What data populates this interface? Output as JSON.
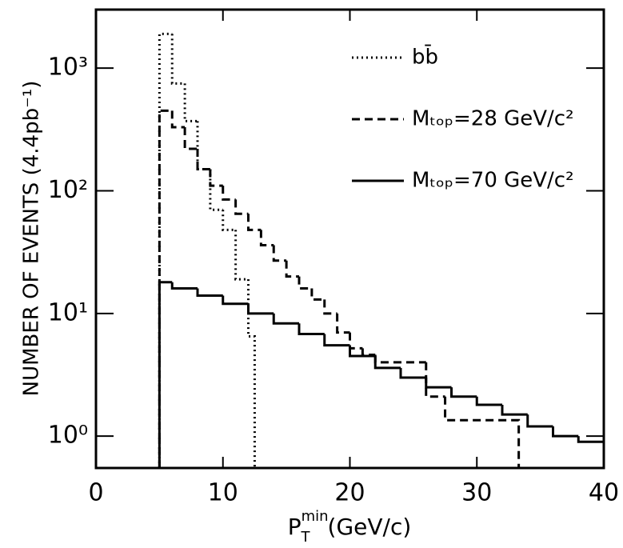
{
  "chart_data": {
    "type": "step-histogram",
    "ylabel": "NUMBER OF EVENTS (4.4pb⁻¹)",
    "xlabel": {
      "symbol": "P",
      "sub": "T",
      "sup": "min",
      "unit": "(GeV/c)"
    },
    "xlim": [
      0,
      40
    ],
    "xticks": [
      0,
      10,
      20,
      30,
      40
    ],
    "ylim": [
      0.55,
      3000
    ],
    "log_y": true,
    "yticks": [
      {
        "value": 1,
        "label": "10⁰"
      },
      {
        "value": 10,
        "label": "10¹"
      },
      {
        "value": 100,
        "label": "10²"
      },
      {
        "value": 1000,
        "label": "10³"
      }
    ],
    "legend": "upper right",
    "series": [
      {
        "name": "bb̄",
        "style": "dotted",
        "color": "#000000",
        "bins": [
          5,
          6,
          7,
          8,
          9,
          10,
          11,
          12,
          12.5
        ],
        "values": [
          1900,
          750,
          370,
          150,
          70,
          48,
          19,
          6.5
        ]
      },
      {
        "name": "Mₜₒₚ=28 GeV/c²",
        "style": "dashed",
        "color": "#000000",
        "bins": [
          5,
          6,
          7,
          8,
          9,
          10,
          11,
          12,
          13,
          14,
          15,
          16,
          17,
          18,
          19,
          20,
          21,
          22,
          26,
          27.5,
          33.3
        ],
        "values": [
          450,
          330,
          220,
          150,
          110,
          85,
          65,
          48,
          36,
          27,
          20,
          16,
          13,
          10,
          7,
          5.2,
          4.6,
          4.0,
          2.1,
          1.35
        ]
      },
      {
        "name": "Mₜₒₚ=70 GeV/c²",
        "style": "solid",
        "color": "#000000",
        "bins": [
          5,
          6,
          8,
          10,
          12,
          14,
          16,
          18,
          20,
          22,
          24,
          26,
          28,
          30,
          32,
          34,
          36,
          38,
          40
        ],
        "values": [
          18,
          16,
          14,
          12,
          10,
          8.3,
          6.8,
          5.5,
          4.5,
          3.6,
          3.0,
          2.5,
          2.1,
          1.8,
          1.5,
          1.2,
          1.0,
          0.9
        ]
      }
    ]
  }
}
